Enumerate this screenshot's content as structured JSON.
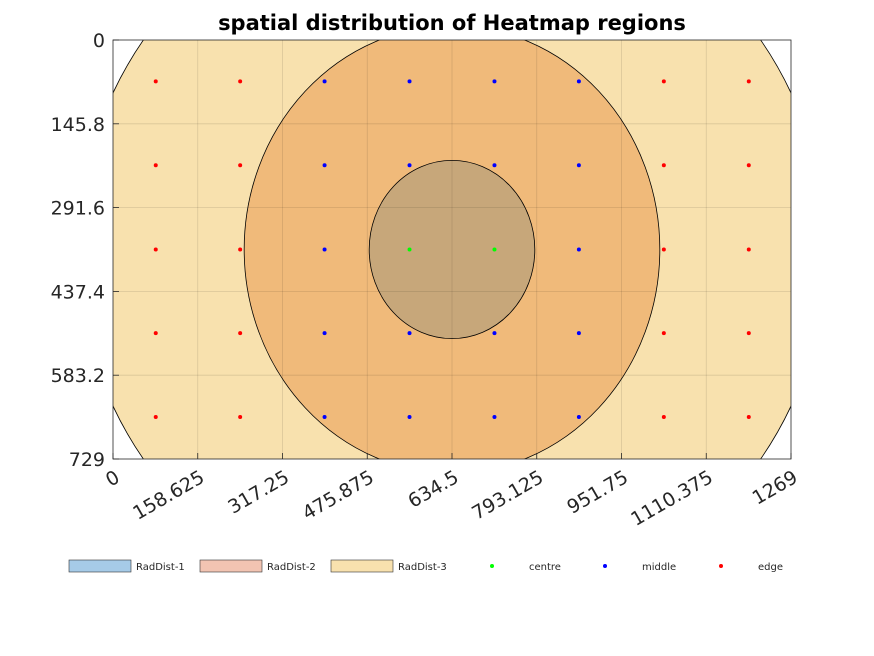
{
  "chart_data": {
    "type": "scatter",
    "title": "spatial distribution of Heatmap regions",
    "xlabel": "",
    "ylabel": "",
    "xlim": [
      0,
      1269
    ],
    "ylim": [
      0,
      729
    ],
    "y_reversed": true,
    "grid": true,
    "legend_position": "bottom",
    "x_tick_labels": [
      "0",
      "158.625",
      "317.25",
      "475.875",
      "634.5",
      "793.125",
      "951.75",
      "1110.375",
      "1269"
    ],
    "y_tick_labels": [
      "0",
      "145.8",
      "291.6",
      "437.4",
      "583.2",
      "729"
    ],
    "regions": [
      {
        "name": "RadDist-1",
        "legend_color": "#a6cbe8",
        "fill": "#c7a77a",
        "center": [
          634.5,
          364.5
        ],
        "rx": 155,
        "ry": 155
      },
      {
        "name": "RadDist-2",
        "legend_color": "#f2c4b2",
        "fill": "#f0ba7a",
        "center": [
          634.5,
          364.5
        ],
        "rx": 389,
        "ry": 389
      },
      {
        "name": "RadDist-3",
        "legend_color": "#f8e1ae",
        "fill": "#f8e1ae",
        "center": [
          634.5,
          364.5
        ],
        "rx": 700,
        "ry": 645
      }
    ],
    "series": [
      {
        "name": "centre",
        "color": "#00ff00",
        "points": [
          [
            555,
            364.5
          ],
          [
            714,
            364.5
          ]
        ]
      },
      {
        "name": "middle",
        "color": "#0000ff",
        "points": [
          [
            396,
            72
          ],
          [
            555,
            72
          ],
          [
            714,
            72
          ],
          [
            872,
            72
          ],
          [
            396,
            218
          ],
          [
            555,
            218
          ],
          [
            714,
            218
          ],
          [
            872,
            218
          ],
          [
            396,
            364.5
          ],
          [
            872,
            364.5
          ],
          [
            396,
            510
          ],
          [
            555,
            510
          ],
          [
            714,
            510
          ],
          [
            872,
            510
          ],
          [
            396,
            656
          ],
          [
            555,
            656
          ],
          [
            714,
            656
          ],
          [
            872,
            656
          ]
        ]
      },
      {
        "name": "edge",
        "color": "#ff0000",
        "points": [
          [
            80,
            72
          ],
          [
            238,
            72
          ],
          [
            1031,
            72
          ],
          [
            1190,
            72
          ],
          [
            80,
            218
          ],
          [
            238,
            218
          ],
          [
            1031,
            218
          ],
          [
            1190,
            218
          ],
          [
            80,
            364.5
          ],
          [
            238,
            364.5
          ],
          [
            1031,
            364.5
          ],
          [
            1190,
            364.5
          ],
          [
            80,
            510
          ],
          [
            238,
            510
          ],
          [
            1031,
            510
          ],
          [
            1190,
            510
          ],
          [
            80,
            656
          ],
          [
            238,
            656
          ],
          [
            1031,
            656
          ],
          [
            1190,
            656
          ]
        ]
      }
    ]
  }
}
